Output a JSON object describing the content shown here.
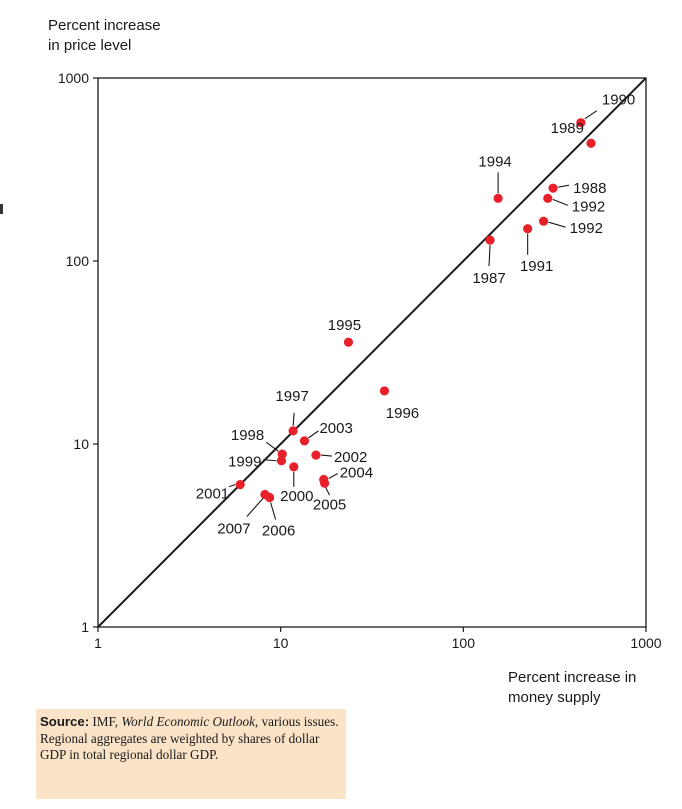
{
  "chart_data": {
    "type": "scatter",
    "title": "",
    "ylabel_lines": [
      "Percent increase",
      "in price level"
    ],
    "xlabel_lines": [
      "Percent increase in",
      "money supply"
    ],
    "xscale": "log",
    "yscale": "log",
    "xlim": [
      1,
      1000
    ],
    "ylim": [
      1,
      1000
    ],
    "xticks": [
      1,
      10,
      100,
      1000
    ],
    "yticks": [
      1,
      10,
      100,
      1000
    ],
    "xtick_labels": [
      "1",
      "10",
      "100",
      "1000"
    ],
    "ytick_labels": [
      "1",
      "10",
      "100",
      "1000"
    ],
    "reference_line": "45-degree line (y = x)",
    "point_color": "#e8202a",
    "points": [
      {
        "label": "1990",
        "x": 440,
        "y": 570
      },
      {
        "label": "1989",
        "x": 500,
        "y": 440
      },
      {
        "label": "1994",
        "x": 155,
        "y": 220
      },
      {
        "label": "1988",
        "x": 310,
        "y": 250
      },
      {
        "label": "1992",
        "x": 290,
        "y": 220
      },
      {
        "label": "1992",
        "x": 275,
        "y": 165
      },
      {
        "label": "1991",
        "x": 225,
        "y": 150
      },
      {
        "label": "1987",
        "x": 140,
        "y": 130
      },
      {
        "label": "1995",
        "x": 23.5,
        "y": 36
      },
      {
        "label": "1996",
        "x": 37,
        "y": 19.5
      },
      {
        "label": "1997",
        "x": 11.7,
        "y": 11.8
      },
      {
        "label": "2003",
        "x": 13.5,
        "y": 10.4
      },
      {
        "label": "1998",
        "x": 10.2,
        "y": 8.8
      },
      {
        "label": "1999",
        "x": 10.1,
        "y": 8.1
      },
      {
        "label": "2002",
        "x": 15.6,
        "y": 8.7
      },
      {
        "label": "2000",
        "x": 11.8,
        "y": 7.5
      },
      {
        "label": "2004",
        "x": 17.2,
        "y": 6.4
      },
      {
        "label": "2005",
        "x": 17.4,
        "y": 6.1
      },
      {
        "label": "2001",
        "x": 6.0,
        "y": 6.0
      },
      {
        "label": "2007",
        "x": 8.2,
        "y": 5.3
      },
      {
        "label": "2006",
        "x": 8.7,
        "y": 5.1
      }
    ]
  },
  "source": {
    "bold": "Source:",
    "text1": " IMF, ",
    "italic": "World Economic Outlook",
    "text2": ", various issues. Regional aggregates are weighted by shares of dollar GDP in total regional dollar GDP."
  }
}
